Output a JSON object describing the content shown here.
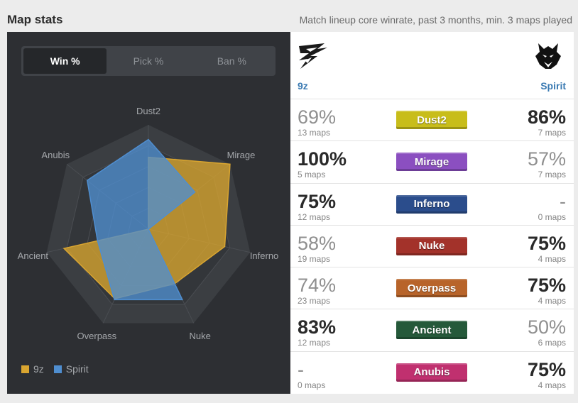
{
  "header": {
    "title": "Map stats",
    "subtitle": "Match lineup core winrate, past 3 months, min. 3 maps played"
  },
  "tabs": [
    {
      "label": "Win %",
      "active": true
    },
    {
      "label": "Pick %",
      "active": false
    },
    {
      "label": "Ban %",
      "active": false
    }
  ],
  "chart_data": {
    "type": "radar",
    "axes": [
      "Dust2",
      "Mirage",
      "Inferno",
      "Nuke",
      "Overpass",
      "Ancient",
      "Anubis"
    ],
    "range": [
      0,
      100
    ],
    "series": [
      {
        "name": "9z",
        "color": "#d9a530",
        "values": [
          69,
          100,
          75,
          58,
          74,
          83,
          0
        ]
      },
      {
        "name": "Spirit",
        "color": "#4f8ed0",
        "values": [
          86,
          57,
          0,
          75,
          75,
          50,
          75
        ]
      }
    ],
    "legend_position": "bottom-left"
  },
  "legend": [
    {
      "label": "9z",
      "color": "#d9a530"
    },
    {
      "label": "Spirit",
      "color": "#4f8ed0"
    }
  ],
  "teams": {
    "left": {
      "name": "9z",
      "logo_icon": "9z-logo-icon"
    },
    "right": {
      "name": "Spirit",
      "logo_icon": "spirit-dragon-logo-icon"
    }
  },
  "maps": [
    {
      "name": "Dust2",
      "color": "#c8bd1a",
      "left": {
        "pct": "69%",
        "maps": "13 maps",
        "bold": false
      },
      "right": {
        "pct": "86%",
        "maps": "7 maps",
        "bold": true
      }
    },
    {
      "name": "Mirage",
      "color": "#8b4fc0",
      "left": {
        "pct": "100%",
        "maps": "5 maps",
        "bold": true
      },
      "right": {
        "pct": "57%",
        "maps": "7 maps",
        "bold": false
      }
    },
    {
      "name": "Inferno",
      "color": "#2b4d8c",
      "left": {
        "pct": "75%",
        "maps": "12 maps",
        "bold": true
      },
      "right": {
        "pct": "-",
        "maps": "0 maps",
        "bold": false
      }
    },
    {
      "name": "Nuke",
      "color": "#a3322a",
      "left": {
        "pct": "58%",
        "maps": "19 maps",
        "bold": false
      },
      "right": {
        "pct": "75%",
        "maps": "4 maps",
        "bold": true
      }
    },
    {
      "name": "Overpass",
      "color": "#b8642a",
      "left": {
        "pct": "74%",
        "maps": "23 maps",
        "bold": false
      },
      "right": {
        "pct": "75%",
        "maps": "4 maps",
        "bold": true
      }
    },
    {
      "name": "Ancient",
      "color": "#25593a",
      "left": {
        "pct": "83%",
        "maps": "12 maps",
        "bold": true
      },
      "right": {
        "pct": "50%",
        "maps": "6 maps",
        "bold": false
      }
    },
    {
      "name": "Anubis",
      "color": "#c0306f",
      "left": {
        "pct": "-",
        "maps": "0 maps",
        "bold": false
      },
      "right": {
        "pct": "75%",
        "maps": "4 maps",
        "bold": true
      }
    }
  ]
}
